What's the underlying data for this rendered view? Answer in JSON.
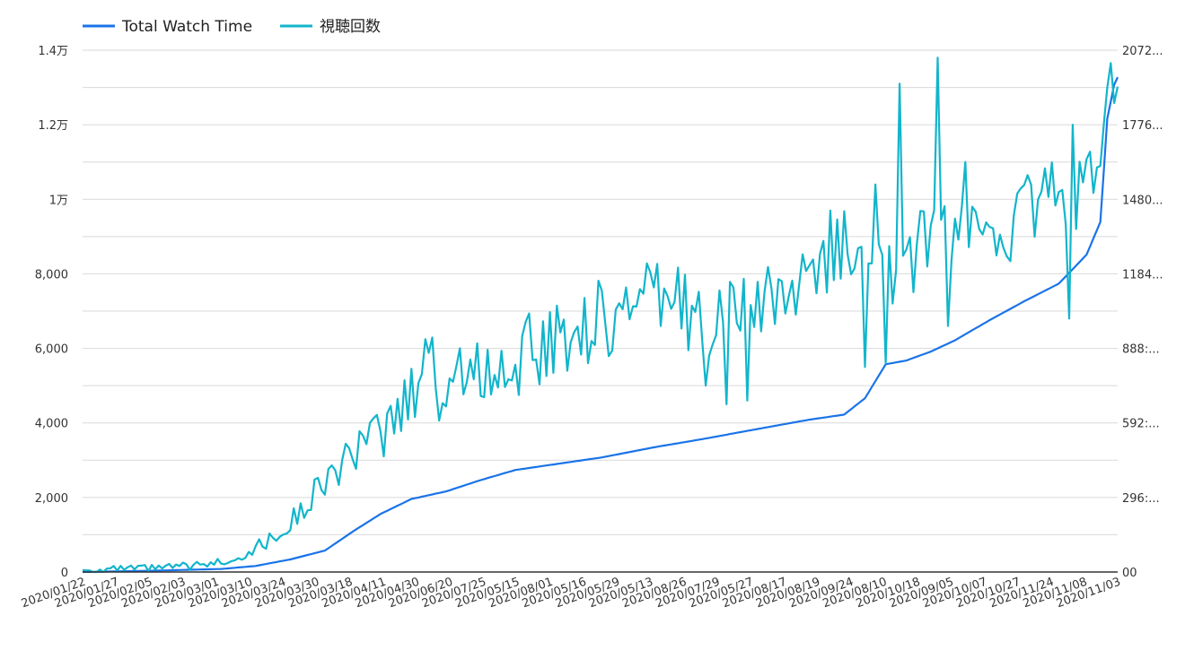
{
  "chart_data": {
    "type": "line",
    "title": "",
    "legend": {
      "position": "top-left",
      "items": [
        {
          "label": "Total Watch Time",
          "color": "#1a73e8"
        },
        {
          "label": "視聴回数",
          "color": "#12b5cb"
        }
      ]
    },
    "y_left": {
      "min": 0,
      "max": 14000,
      "ticks": [
        {
          "value": 0,
          "label": "0"
        },
        {
          "value": 2000,
          "label": "2,000"
        },
        {
          "value": 4000,
          "label": "4,000"
        },
        {
          "value": 6000,
          "label": "6,000"
        },
        {
          "value": 8000,
          "label": "8,000"
        },
        {
          "value": 10000,
          "label": "1万"
        },
        {
          "value": 12000,
          "label": "1.2万"
        },
        {
          "value": 14000,
          "label": "1.4万"
        }
      ]
    },
    "y_right": {
      "min": 0,
      "max": 2072,
      "ticks": [
        {
          "value": 0,
          "label": "00"
        },
        {
          "value": 296,
          "label": "296:..."
        },
        {
          "value": 592,
          "label": "592:..."
        },
        {
          "value": 888,
          "label": "888:..."
        },
        {
          "value": 1184,
          "label": "1184..."
        },
        {
          "value": 1480,
          "label": "1480..."
        },
        {
          "value": 1776,
          "label": "1776..."
        },
        {
          "value": 2072,
          "label": "2072..."
        }
      ]
    },
    "grid": true,
    "x_tick_labels": [
      "2020/01/22",
      "2020/01/27",
      "2020/02/05",
      "2020/02/03",
      "2020/03/01",
      "2020/03/10",
      "2020/03/24",
      "2020/03/30",
      "2020/03/18",
      "2020/04/11",
      "2020/04/30",
      "2020/06/20",
      "2020/07/25",
      "2020/05/15",
      "2020/08/01",
      "2020/05/16",
      "2020/05/29",
      "2020/05/13",
      "2020/08/26",
      "2020/07/29",
      "2020/05/27",
      "2020/08/17",
      "2020/08/19",
      "2020/09/24",
      "2020/08/10",
      "2020/10/18",
      "2020/09/05",
      "2020/10/07",
      "2020/10/27",
      "2020/11/24",
      "2020/11/08",
      "2020/11/03"
    ],
    "n_points": 300,
    "series": [
      {
        "name": "Total Watch Time",
        "axis": "right",
        "color": "#1a73e8",
        "keypoints": [
          [
            0,
            0
          ],
          [
            20,
            5
          ],
          [
            40,
            12
          ],
          [
            50,
            24
          ],
          [
            60,
            50
          ],
          [
            70,
            85
          ],
          [
            78,
            160
          ],
          [
            86,
            230
          ],
          [
            95,
            290
          ],
          [
            105,
            320
          ],
          [
            115,
            365
          ],
          [
            125,
            405
          ],
          [
            135,
            425
          ],
          [
            150,
            455
          ],
          [
            165,
            495
          ],
          [
            180,
            530
          ],
          [
            195,
            568
          ],
          [
            210,
            605
          ],
          [
            220,
            625
          ],
          [
            226,
            690
          ],
          [
            232,
            825
          ],
          [
            238,
            840
          ],
          [
            245,
            875
          ],
          [
            252,
            920
          ],
          [
            262,
            1000
          ],
          [
            272,
            1075
          ],
          [
            282,
            1145
          ],
          [
            290,
            1260
          ],
          [
            294,
            1390
          ],
          [
            296,
            1800
          ],
          [
            298,
            1935
          ],
          [
            299,
            1965
          ]
        ]
      },
      {
        "name": "視聴回数",
        "axis": "left",
        "color": "#12b5cb",
        "keypoints": [
          [
            0,
            50
          ],
          [
            20,
            100
          ],
          [
            35,
            180
          ],
          [
            45,
            400
          ],
          [
            55,
            900
          ],
          [
            62,
            1500
          ],
          [
            70,
            2500
          ],
          [
            80,
            3200
          ],
          [
            90,
            4000
          ],
          [
            96,
            5000
          ],
          [
            100,
            6250
          ],
          [
            103,
            4600
          ],
          [
            110,
            5500
          ],
          [
            120,
            5300
          ],
          [
            130,
            6000
          ],
          [
            140,
            6400
          ],
          [
            150,
            6800
          ],
          [
            160,
            7200
          ],
          [
            170,
            7300
          ],
          [
            180,
            6800
          ],
          [
            190,
            7200
          ],
          [
            200,
            7400
          ],
          [
            210,
            7700
          ],
          [
            218,
            8500
          ],
          [
            225,
            9500
          ],
          [
            232,
            8000
          ],
          [
            240,
            8500
          ],
          [
            250,
            9000
          ],
          [
            260,
            9000
          ],
          [
            270,
            9500
          ],
          [
            280,
            10200
          ],
          [
            287,
            10000
          ],
          [
            292,
            11000
          ],
          [
            296,
            12000
          ],
          [
            298,
            13600
          ],
          [
            299,
            13300
          ]
        ],
        "spikes": [
          [
            236,
            13100
          ],
          [
            247,
            13800
          ],
          [
            286,
            12000
          ],
          [
            216,
            9700
          ],
          [
            229,
            10400
          ],
          [
            255,
            11000
          ]
        ],
        "dips": [
          [
            180,
            5000
          ],
          [
            186,
            4500
          ],
          [
            192,
            4600
          ],
          [
            226,
            5500
          ],
          [
            232,
            5600
          ],
          [
            250,
            6600
          ],
          [
            285,
            6800
          ]
        ]
      }
    ]
  }
}
